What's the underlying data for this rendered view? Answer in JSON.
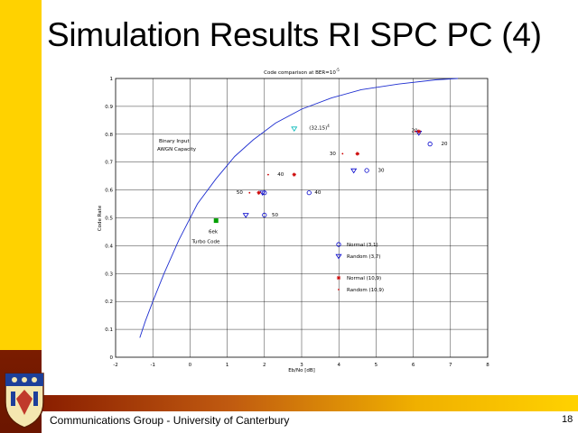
{
  "slide": {
    "title": "Simulation Results RI SPC PC (4)",
    "footer": "Communications Group - University of Canterbury",
    "page_number": "18"
  },
  "colors": {
    "accent_yellow": "#ffd200",
    "accent_dark": "#7a1c00",
    "curve": "#1f2fd0"
  },
  "chart_data": {
    "type": "scatter",
    "title": "Code comparison at BER=10",
    "title_superscript": "-5",
    "xlabel": "Eb/No [dB]",
    "ylabel": "Code Rate",
    "xlim": [
      -2,
      8
    ],
    "ylim": [
      0,
      1
    ],
    "grid": true,
    "xticks": [
      "-2",
      "-1",
      "0",
      "1",
      "2",
      "3",
      "4",
      "5",
      "6",
      "7",
      "8"
    ],
    "yticks": [
      "0",
      "0.1",
      "0.2",
      "0.3",
      "0.4",
      "0.5",
      "0.6",
      "0.7",
      "0.8",
      "0.9",
      "1"
    ],
    "capacity_curve": {
      "label_line1": "Binary Input",
      "label_line2": "AWGN Capacity",
      "points": [
        [
          -1.35,
          0.07
        ],
        [
          -1.2,
          0.13
        ],
        [
          -1.0,
          0.2
        ],
        [
          -0.7,
          0.3
        ],
        [
          -0.3,
          0.42
        ],
        [
          0.2,
          0.55
        ],
        [
          0.7,
          0.64
        ],
        [
          1.2,
          0.72
        ],
        [
          1.7,
          0.78
        ],
        [
          2.3,
          0.84
        ],
        [
          3.0,
          0.89
        ],
        [
          3.8,
          0.93
        ],
        [
          4.6,
          0.96
        ],
        [
          5.6,
          0.98
        ],
        [
          6.6,
          0.995
        ],
        [
          7.2,
          1.0
        ]
      ]
    },
    "series": [
      {
        "name": "Normal (3,1)",
        "marker": "circle",
        "color": "#0000cc",
        "points": [
          [
            2.0,
            0.59
          ],
          [
            3.2,
            0.59
          ],
          [
            4.75,
            0.67
          ],
          [
            6.45,
            0.765
          ],
          [
            2.0,
            0.51
          ]
        ]
      },
      {
        "name": "Random (3,7)",
        "marker": "triangle-down",
        "color": "#0000cc",
        "points": [
          [
            1.5,
            0.51
          ],
          [
            1.95,
            0.59
          ],
          [
            4.4,
            0.67
          ],
          [
            6.15,
            0.805
          ]
        ]
      },
      {
        "name": "Normal (10,9)",
        "marker": "star",
        "color": "#cc0000",
        "points": [
          [
            1.85,
            0.59
          ],
          [
            2.8,
            0.655
          ],
          [
            4.5,
            0.73
          ],
          [
            6.15,
            0.81
          ]
        ]
      },
      {
        "name": "Random (10,9)",
        "marker": "dot",
        "color": "#cc0000",
        "points": [
          [
            1.6,
            0.59
          ],
          [
            2.1,
            0.655
          ],
          [
            4.1,
            0.73
          ],
          [
            6.05,
            0.81
          ]
        ]
      },
      {
        "name": "Turbo",
        "marker": "triangle-down",
        "color": "#00b8b8",
        "points": [
          [
            2.8,
            0.82
          ]
        ]
      },
      {
        "name": "6ek",
        "marker": "square",
        "color": "#00a000",
        "points": [
          [
            0.7,
            0.49
          ]
        ]
      }
    ],
    "annotations": [
      {
        "text": "(32,15)",
        "superscript": "4",
        "x": 3.2,
        "y": 0.817
      },
      {
        "text": "20",
        "x": 5.95,
        "y": 0.807
      },
      {
        "text": "20",
        "x": 6.75,
        "y": 0.76
      },
      {
        "text": "30",
        "x": 3.75,
        "y": 0.725
      },
      {
        "text": "30",
        "x": 5.05,
        "y": 0.665
      },
      {
        "text": "40",
        "x": 2.35,
        "y": 0.65
      },
      {
        "text": "40",
        "x": 3.35,
        "y": 0.585
      },
      {
        "text": "50",
        "x": 1.25,
        "y": 0.585
      },
      {
        "text": "50",
        "x": 2.2,
        "y": 0.505
      },
      {
        "text": "6ek",
        "x": 0.5,
        "y": 0.445
      },
      {
        "text": "Turbo Code",
        "x": 0.05,
        "y": 0.41
      }
    ],
    "legend": {
      "position": "lower-right",
      "items": [
        {
          "label": "Normal (3,1)",
          "marker": "circle",
          "color": "#0000cc"
        },
        {
          "label": "Random (3,7)",
          "marker": "triangle-down",
          "color": "#0000cc"
        },
        {
          "label": "Normal (10,9)",
          "marker": "star",
          "color": "#cc0000"
        },
        {
          "label": "Random (10,9)",
          "marker": "dot",
          "color": "#cc0000"
        }
      ]
    }
  }
}
